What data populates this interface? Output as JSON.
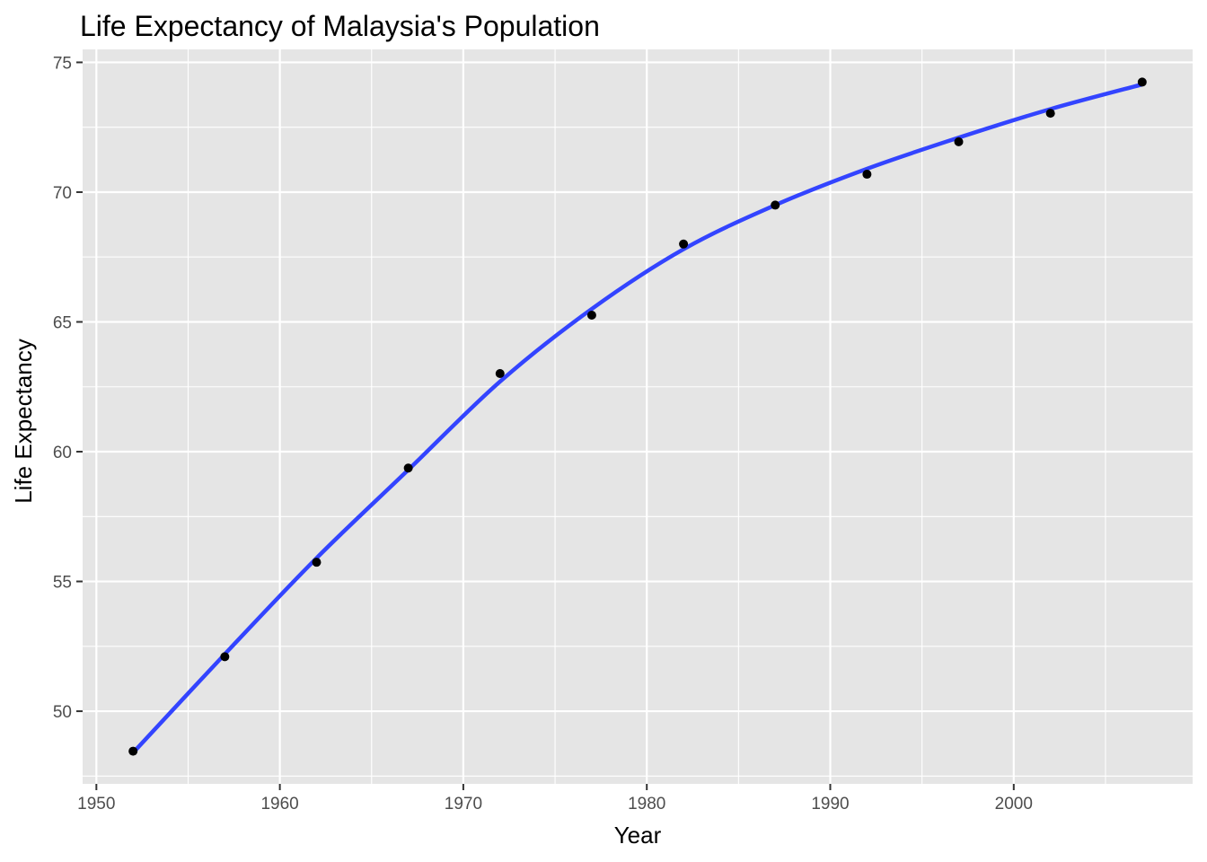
{
  "chart_data": {
    "type": "scatter",
    "title": "Life Expectancy of Malaysia's Population",
    "xlabel": "Year",
    "ylabel": "Life Expectancy",
    "xlim": [
      1949.25,
      2009.75
    ],
    "ylim": [
      47.2,
      75.5
    ],
    "x_ticks": [
      1950,
      1960,
      1970,
      1980,
      1990,
      2000
    ],
    "x_tick_labels": [
      "1950",
      "1960",
      "1970",
      "1980",
      "1990",
      "2000"
    ],
    "x_minor_ticks": [
      1955,
      1965,
      1975,
      1985,
      1995,
      2005
    ],
    "y_ticks": [
      50,
      55,
      60,
      65,
      70,
      75
    ],
    "y_tick_labels": [
      "50",
      "55",
      "60",
      "65",
      "70",
      "75"
    ],
    "y_minor_ticks": [
      47.5,
      52.5,
      57.5,
      62.5,
      67.5,
      72.5
    ],
    "grid": true,
    "points": {
      "x": [
        1952,
        1957,
        1962,
        1967,
        1972,
        1977,
        1982,
        1987,
        1992,
        1997,
        2002,
        2007
      ],
      "y": [
        48.46,
        52.1,
        55.74,
        59.37,
        63.01,
        65.26,
        68.0,
        69.5,
        70.69,
        71.94,
        73.04,
        74.24
      ]
    },
    "smooth_line": {
      "x": [
        1952,
        1957,
        1962,
        1967,
        1972,
        1977,
        1982,
        1987,
        1992,
        1997,
        2002,
        2007
      ],
      "y": [
        48.4,
        52.2,
        55.9,
        59.3,
        62.7,
        65.5,
        67.8,
        69.5,
        70.9,
        72.1,
        73.2,
        74.15
      ]
    },
    "colors": {
      "panel": "#e5e5e5",
      "grid": "#ffffff",
      "point": "#000000",
      "line": "#3344ff",
      "tick": "#333333"
    }
  }
}
